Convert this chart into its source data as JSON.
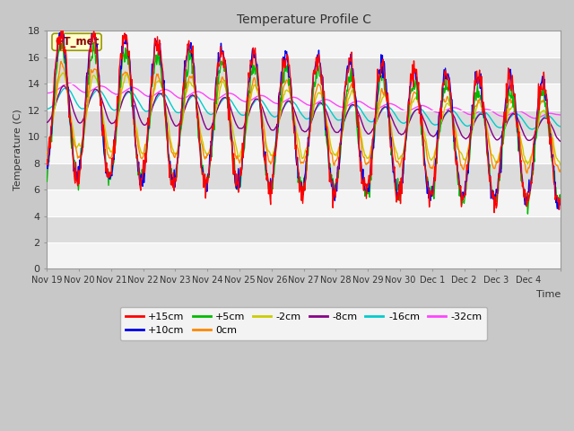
{
  "title": "Temperature Profile C",
  "xlabel": "Time",
  "ylabel": "Temperature (C)",
  "ylim": [
    0,
    18
  ],
  "series_colors": {
    "+15cm": "#ff0000",
    "+10cm": "#0000ee",
    "+5cm": "#00bb00",
    "0cm": "#ff8800",
    "-2cm": "#cccc00",
    "-8cm": "#880088",
    "-16cm": "#00cccc",
    "-32cm": "#ff44ff"
  },
  "xtick_labels": [
    "Nov 19",
    "Nov 20",
    "Nov 21",
    "Nov 22",
    "Nov 23",
    "Nov 24",
    "Nov 25",
    "Nov 26",
    "Nov 27",
    "Nov 28",
    "Nov 29",
    "Nov 30",
    "Dec 1",
    "Dec 2",
    "Dec 3",
    "Dec 4"
  ],
  "ytick_labels": [
    "0",
    "2",
    "4",
    "6",
    "8",
    "10",
    "12",
    "14",
    "16",
    "18"
  ],
  "annotation_text": "GT_met",
  "n_days": 16
}
